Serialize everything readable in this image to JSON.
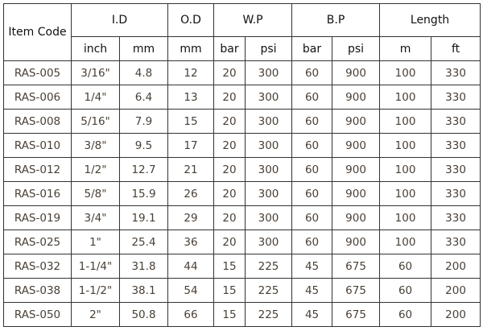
{
  "headers": {
    "item_code": "Item Code",
    "groups": [
      "I.D",
      "O.D",
      "W.P",
      "B.P",
      "Length"
    ],
    "units": [
      "inch",
      "mm",
      "mm",
      "bar",
      "psi",
      "bar",
      "psi",
      "m",
      "ft"
    ]
  },
  "rows": [
    [
      "RAS-005",
      "3/16\"",
      "4.8",
      "12",
      "20",
      "300",
      "60",
      "900",
      "100",
      "330"
    ],
    [
      "RAS-006",
      "1/4\"",
      "6.4",
      "13",
      "20",
      "300",
      "60",
      "900",
      "100",
      "330"
    ],
    [
      "RAS-008",
      "5/16\"",
      "7.9",
      "15",
      "20",
      "300",
      "60",
      "900",
      "100",
      "330"
    ],
    [
      "RAS-010",
      "3/8\"",
      "9.5",
      "17",
      "20",
      "300",
      "60",
      "900",
      "100",
      "330"
    ],
    [
      "RAS-012",
      "1/2\"",
      "12.7",
      "21",
      "20",
      "300",
      "60",
      "900",
      "100",
      "330"
    ],
    [
      "RAS-016",
      "5/8\"",
      "15.9",
      "26",
      "20",
      "300",
      "60",
      "900",
      "100",
      "330"
    ],
    [
      "RAS-019",
      "3/4\"",
      "19.1",
      "29",
      "20",
      "300",
      "60",
      "900",
      "100",
      "330"
    ],
    [
      "RAS-025",
      "1\"",
      "25.4",
      "36",
      "20",
      "300",
      "60",
      "900",
      "100",
      "330"
    ],
    [
      "RAS-032",
      "1-1/4\"",
      "31.8",
      "44",
      "15",
      "225",
      "45",
      "675",
      "60",
      "200"
    ],
    [
      "RAS-038",
      "1-1/2\"",
      "38.1",
      "54",
      "15",
      "225",
      "45",
      "675",
      "60",
      "200"
    ],
    [
      "RAS-050",
      "2\"",
      "50.8",
      "66",
      "15",
      "225",
      "45",
      "675",
      "60",
      "200"
    ]
  ]
}
